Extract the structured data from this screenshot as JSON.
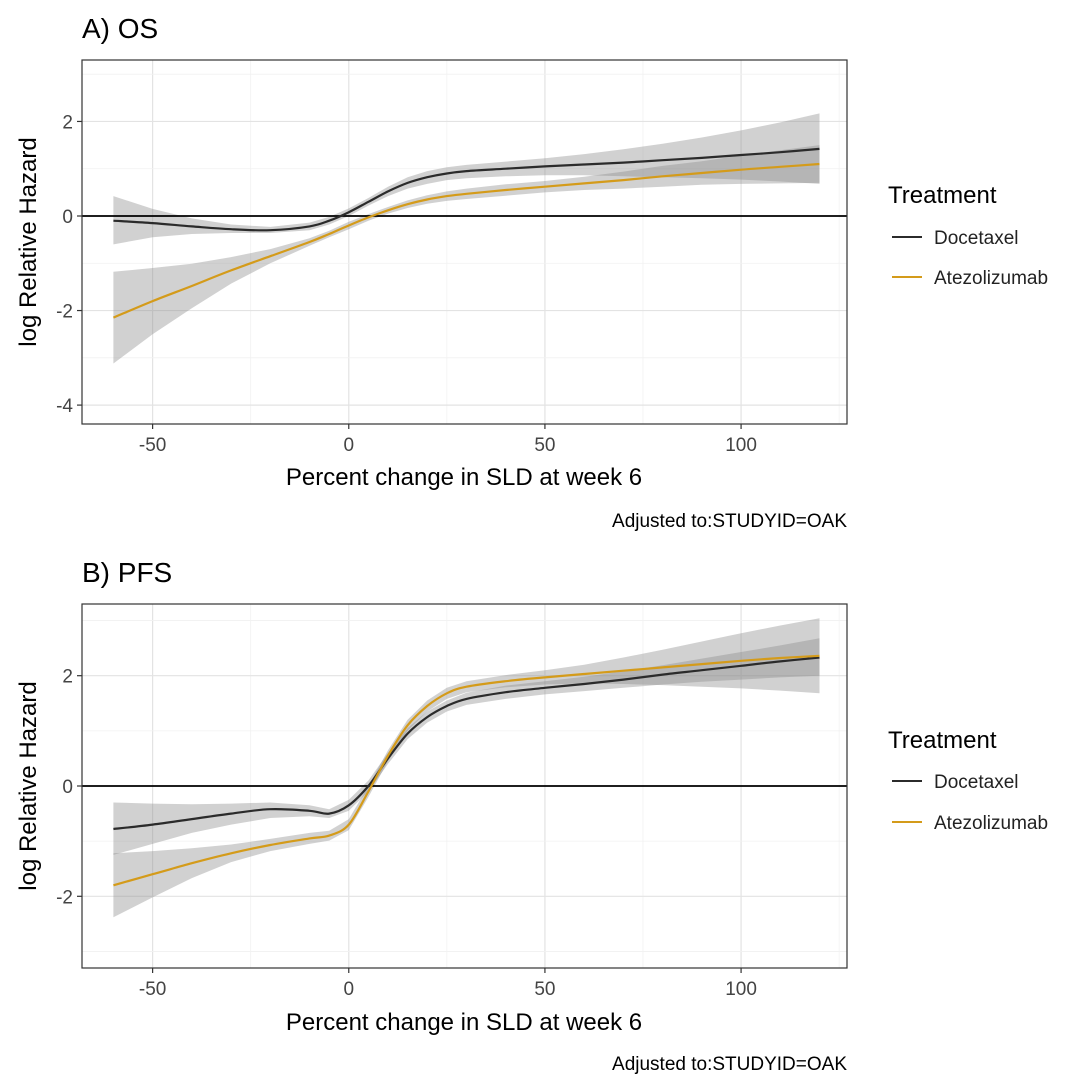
{
  "chart_data": [
    {
      "type": "line",
      "title": "A) OS",
      "xlabel": "Percent change in SLD at week 6",
      "ylabel": "log Relative Hazard",
      "caption": "Adjusted to:STUDYID=OAK",
      "xlim": [
        -68,
        127
      ],
      "ylim": [
        -4.4,
        3.3
      ],
      "xticks": [
        -50,
        0,
        50,
        100
      ],
      "xtick_labels": [
        "-50",
        "0",
        "50",
        "100"
      ],
      "yticks": [
        -4,
        -2,
        0,
        2
      ],
      "ytick_labels": [
        "-4",
        "-2",
        "0",
        "2"
      ],
      "hline": 0,
      "grid": true,
      "legend": {
        "title": "Treatment",
        "position": "right",
        "entries": [
          "Docetaxel",
          "Atezolizumab"
        ]
      },
      "series": [
        {
          "name": "Docetaxel",
          "color": "#2b2b2b",
          "x": [
            -60,
            -50,
            -40,
            -30,
            -20,
            -10,
            -5,
            0,
            5,
            10,
            15,
            20,
            25,
            30,
            40,
            50,
            60,
            70,
            80,
            90,
            100,
            110,
            120
          ],
          "y": [
            -0.1,
            -0.15,
            -0.22,
            -0.28,
            -0.3,
            -0.22,
            -0.1,
            0.08,
            0.3,
            0.52,
            0.7,
            0.82,
            0.9,
            0.95,
            1.0,
            1.05,
            1.09,
            1.13,
            1.18,
            1.23,
            1.29,
            1.35,
            1.42
          ],
          "lower": [
            -0.6,
            -0.45,
            -0.38,
            -0.36,
            -0.36,
            -0.3,
            -0.18,
            0.0,
            0.22,
            0.42,
            0.58,
            0.68,
            0.76,
            0.8,
            0.84,
            0.86,
            0.86,
            0.84,
            0.82,
            0.8,
            0.77,
            0.73,
            0.68
          ],
          "upper": [
            0.42,
            0.15,
            -0.05,
            -0.18,
            -0.23,
            -0.14,
            -0.02,
            0.16,
            0.38,
            0.62,
            0.82,
            0.95,
            1.03,
            1.08,
            1.15,
            1.22,
            1.31,
            1.41,
            1.53,
            1.66,
            1.81,
            1.98,
            2.17
          ]
        },
        {
          "name": "Atezolizumab",
          "color": "#d49b1a",
          "x": [
            -60,
            -50,
            -40,
            -30,
            -20,
            -10,
            -5,
            0,
            5,
            10,
            15,
            20,
            25,
            30,
            40,
            50,
            60,
            70,
            80,
            90,
            100,
            110,
            120
          ],
          "y": [
            -2.15,
            -1.8,
            -1.48,
            -1.15,
            -0.85,
            -0.55,
            -0.38,
            -0.2,
            -0.03,
            0.12,
            0.25,
            0.35,
            0.42,
            0.47,
            0.55,
            0.62,
            0.69,
            0.76,
            0.84,
            0.91,
            0.98,
            1.04,
            1.1
          ],
          "lower": [
            -3.12,
            -2.5,
            -1.95,
            -1.43,
            -1.0,
            -0.63,
            -0.45,
            -0.28,
            -0.1,
            0.05,
            0.17,
            0.26,
            0.32,
            0.36,
            0.43,
            0.5,
            0.55,
            0.58,
            0.62,
            0.66,
            0.68,
            0.69,
            0.7
          ],
          "upper": [
            -1.18,
            -1.1,
            -1.01,
            -0.87,
            -0.7,
            -0.47,
            -0.31,
            -0.12,
            0.04,
            0.19,
            0.33,
            0.44,
            0.52,
            0.58,
            0.67,
            0.74,
            0.83,
            0.94,
            1.06,
            1.16,
            1.28,
            1.39,
            1.5
          ]
        }
      ]
    },
    {
      "type": "line",
      "title": "B) PFS",
      "xlabel": "Percent change in SLD at week 6",
      "ylabel": "log Relative Hazard",
      "caption": "Adjusted to:STUDYID=OAK",
      "xlim": [
        -68,
        127
      ],
      "ylim": [
        -3.3,
        3.3
      ],
      "xticks": [
        -50,
        0,
        50,
        100
      ],
      "xtick_labels": [
        "-50",
        "0",
        "50",
        "100"
      ],
      "yticks": [
        -2,
        0,
        2
      ],
      "ytick_labels": [
        "-2",
        "0",
        "2"
      ],
      "hline": 0,
      "grid": true,
      "legend": {
        "title": "Treatment",
        "position": "right",
        "entries": [
          "Docetaxel",
          "Atezolizumab"
        ]
      },
      "series": [
        {
          "name": "Docetaxel",
          "color": "#2b2b2b",
          "x": [
            -60,
            -50,
            -40,
            -30,
            -20,
            -10,
            -5,
            0,
            5,
            10,
            15,
            20,
            25,
            30,
            40,
            50,
            60,
            70,
            80,
            90,
            100,
            110,
            120
          ],
          "y": [
            -0.78,
            -0.7,
            -0.6,
            -0.5,
            -0.42,
            -0.45,
            -0.5,
            -0.35,
            0.0,
            0.5,
            0.95,
            1.25,
            1.45,
            1.58,
            1.7,
            1.78,
            1.85,
            1.93,
            2.02,
            2.1,
            2.18,
            2.26,
            2.33
          ],
          "lower": [
            -1.25,
            -1.05,
            -0.85,
            -0.7,
            -0.58,
            -0.55,
            -0.58,
            -0.45,
            -0.1,
            0.4,
            0.85,
            1.15,
            1.35,
            1.47,
            1.58,
            1.66,
            1.72,
            1.78,
            1.84,
            1.89,
            1.93,
            1.97,
            2.0
          ],
          "upper": [
            -0.3,
            -0.32,
            -0.33,
            -0.32,
            -0.3,
            -0.35,
            -0.42,
            -0.25,
            0.1,
            0.6,
            1.05,
            1.35,
            1.55,
            1.69,
            1.82,
            1.9,
            1.98,
            2.08,
            2.19,
            2.31,
            2.43,
            2.55,
            2.68
          ]
        },
        {
          "name": "Atezolizumab",
          "color": "#d49b1a",
          "x": [
            -60,
            -50,
            -40,
            -30,
            -20,
            -10,
            -5,
            0,
            5,
            10,
            15,
            20,
            25,
            30,
            40,
            50,
            60,
            70,
            80,
            90,
            100,
            110,
            120
          ],
          "y": [
            -1.8,
            -1.6,
            -1.4,
            -1.22,
            -1.07,
            -0.95,
            -0.9,
            -0.7,
            -0.1,
            0.55,
            1.1,
            1.45,
            1.68,
            1.8,
            1.9,
            1.97,
            2.03,
            2.09,
            2.15,
            2.21,
            2.27,
            2.32,
            2.36
          ],
          "lower": [
            -2.38,
            -2.02,
            -1.67,
            -1.38,
            -1.18,
            -1.05,
            -0.99,
            -0.8,
            -0.2,
            0.45,
            1.0,
            1.35,
            1.58,
            1.7,
            1.79,
            1.84,
            1.86,
            1.85,
            1.83,
            1.8,
            1.77,
            1.73,
            1.68
          ],
          "upper": [
            -1.22,
            -1.18,
            -1.13,
            -1.06,
            -0.96,
            -0.85,
            -0.81,
            -0.6,
            0.0,
            0.65,
            1.2,
            1.55,
            1.78,
            1.9,
            2.01,
            2.1,
            2.2,
            2.33,
            2.47,
            2.62,
            2.77,
            2.91,
            3.04
          ]
        }
      ]
    }
  ]
}
